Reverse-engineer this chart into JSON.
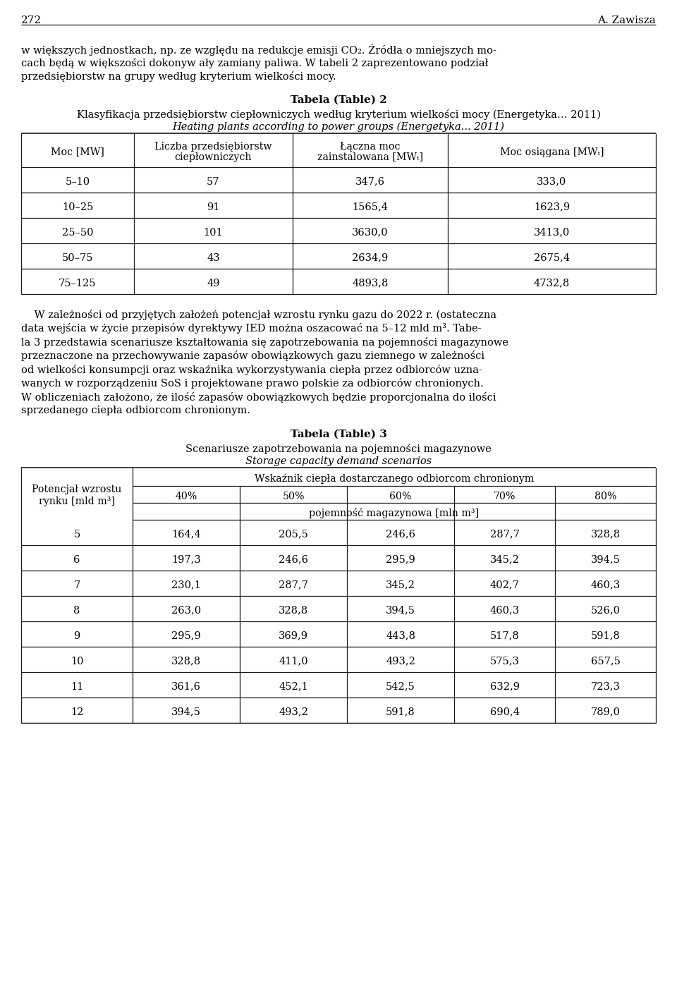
{
  "page_number": "272",
  "author": "A. Zawisza",
  "table2_title_bold": "Tabela (Table) 2",
  "table2_subtitle": "Klasyfikacja przedsiębiorstw ciepłowniczych według kryterium wielkości mocy (Energetyka… 2011)",
  "table2_subtitle_italic": "Heating plants according to power groups (Energetyka... 2011)",
  "table2_headers": [
    "Moc [MW]",
    "Liczba przedsiębiorstw\nciepłowniczych",
    "Łączna moc\nzainstalowana [MWₜ]",
    "Moc osiągana [MWₜ]"
  ],
  "table2_rows": [
    [
      "5–10",
      "57",
      "347,6",
      "333,0"
    ],
    [
      "10–25",
      "91",
      "1565,4",
      "1623,9"
    ],
    [
      "25–50",
      "101",
      "3630,0",
      "3413,0"
    ],
    [
      "50–75",
      "43",
      "2634,9",
      "2675,4"
    ],
    [
      "75–125",
      "49",
      "4893,8",
      "4732,8"
    ]
  ],
  "para_lines": [
    "w większych jednostkach, np. ze względu na redukcje emisji CO₂. Źródła o mniejszych mo-",
    "cach będą w większości dokonyw ały zamiany paliwa. W tabeli 2 zaprezentowano podział",
    "przedsiębiorstw na grupy według kryterium wielkości mocy."
  ],
  "mid_lines": [
    "    W zależności od przyjętych założeń potencjał wzrostu rynku gazu do 2022 r. (ostateczna",
    "data wejścia w życie przepisów dyrektywy IED można oszacować na 5–12 mld m³. Tabe-",
    "la 3 przedstawia scenariusze kształtowania się zapotrzebowania na pojemności magazynowe",
    "przeznaczone na przechowywanie zapasów obowiązkowych gazu ziemnego w zależności",
    "od wielkości konsumpcji oraz wskaźnika wykorzystywania ciepła przez odbiorców uzna-",
    "wanych w rozporządzeniu SoS i projektowane prawo polskie za odbiorców chronionych.",
    "W obliczeniach założono, że ilość zapasów obowiązkowych będzie proporcjonalna do ilości",
    "sprzedanego ciepła odbiorcom chronionym."
  ],
  "table3_title_bold": "Tabela (Table) 3",
  "table3_subtitle": "Scenariusze zapotrzebowania na pojemności magazynowe",
  "table3_subtitle_italic": "Storage capacity demand scenarios",
  "table3_col1_header": "Potencjał wzrostu\nrynku [mld m³]",
  "table3_span_header": "Wskaźnik ciepła dostarczanego odbiorcom chronionym",
  "table3_pct_headers": [
    "40%",
    "50%",
    "60%",
    "70%",
    "80%"
  ],
  "table3_unit_header": "pojemność magazynowa [mln m³]",
  "table3_rows": [
    [
      "5",
      "164,4",
      "205,5",
      "246,6",
      "287,7",
      "328,8"
    ],
    [
      "6",
      "197,3",
      "246,6",
      "295,9",
      "345,2",
      "394,5"
    ],
    [
      "7",
      "230,1",
      "287,7",
      "345,2",
      "402,7",
      "460,3"
    ],
    [
      "8",
      "263,0",
      "328,8",
      "394,5",
      "460,3",
      "526,0"
    ],
    [
      "9",
      "295,9",
      "369,9",
      "443,8",
      "517,8",
      "591,8"
    ],
    [
      "10",
      "328,8",
      "411,0",
      "493,2",
      "575,3",
      "657,5"
    ],
    [
      "11",
      "361,6",
      "452,1",
      "542,5",
      "632,9",
      "723,3"
    ],
    [
      "12",
      "394,5",
      "493,2",
      "591,8",
      "690,4",
      "789,0"
    ]
  ],
  "bg_color": "#ffffff"
}
